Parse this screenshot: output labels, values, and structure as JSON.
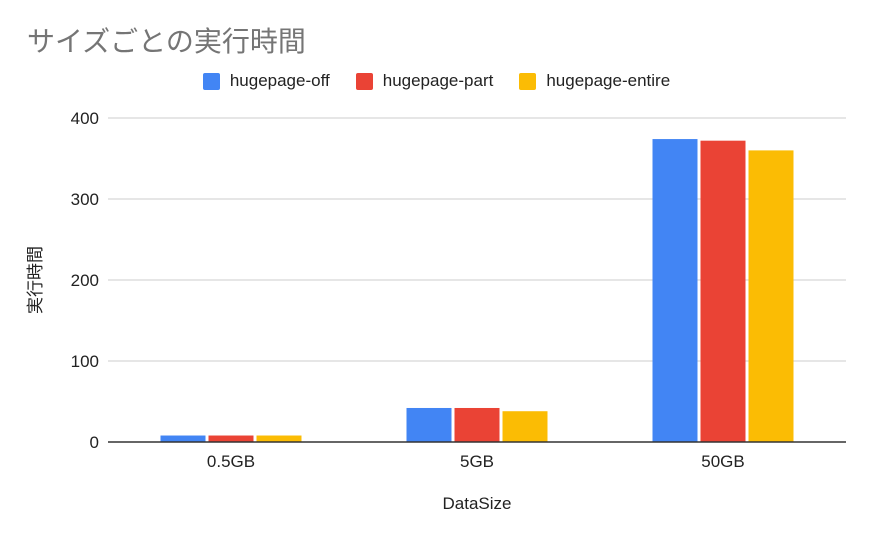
{
  "chart_data": {
    "type": "bar",
    "title": "サイズごとの実行時間",
    "xlabel": "DataSize",
    "ylabel": "実行時間",
    "categories": [
      "0.5GB",
      "5GB",
      "50GB"
    ],
    "series": [
      {
        "name": "hugepage-off",
        "color": "#4285F4",
        "values": [
          8,
          42,
          374
        ]
      },
      {
        "name": "hugepage-part",
        "color": "#EA4335",
        "values": [
          8,
          42,
          372
        ]
      },
      {
        "name": "hugepage-entire",
        "color": "#FBBC04",
        "values": [
          8,
          38,
          360
        ]
      }
    ],
    "ylim": [
      0,
      400
    ],
    "yticks": [
      0,
      100,
      200,
      300,
      400
    ],
    "grid": true,
    "legend_position": "top"
  }
}
